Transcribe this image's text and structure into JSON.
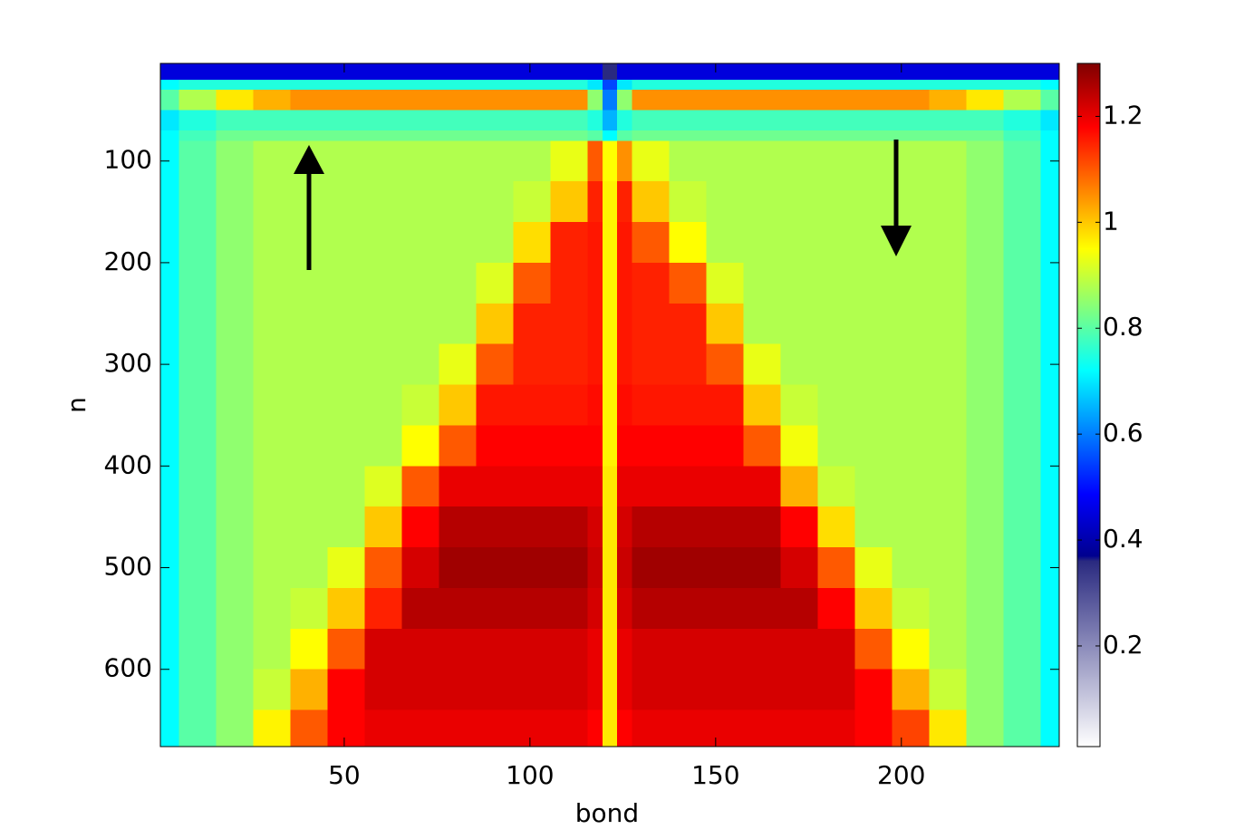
{
  "chart_data": {
    "type": "heatmap",
    "xlabel": "bond",
    "ylabel": "n",
    "xlim": [
      0.5,
      242.5
    ],
    "ylim": [
      4,
      676
    ],
    "y_reversed": true,
    "xticks": [
      50,
      100,
      150,
      200
    ],
    "yticks": [
      100,
      200,
      300,
      400,
      500,
      600
    ],
    "clim": [
      0.01,
      1.3
    ],
    "cticks": [
      0.2,
      0.4,
      0.6,
      0.8,
      1,
      1.2
    ],
    "colormap": [
      [
        0.01,
        "#ffffff"
      ],
      [
        0.36,
        "#2a2a80"
      ],
      [
        0.37,
        "#00008f"
      ],
      [
        0.486,
        "#0000ff"
      ],
      [
        0.72,
        "#00ffff"
      ],
      [
        0.95,
        "#ffff00"
      ],
      [
        1.18,
        "#ff0000"
      ],
      [
        1.3,
        "#800000"
      ]
    ],
    "x_edges": [
      0.5,
      5.5,
      15.5,
      25.5,
      35.5,
      45.5,
      55.5,
      65.5,
      75.5,
      85.5,
      95.5,
      105.5,
      115.5,
      119.5,
      123.5,
      127.5,
      137.5,
      147.5,
      157.5,
      167.5,
      177.5,
      187.5,
      197.5,
      207.5,
      217.5,
      227.5,
      237.5,
      242.5
    ],
    "y_edges": [
      4,
      20,
      30,
      50,
      70,
      80,
      120,
      160,
      200,
      240,
      280,
      320,
      360,
      400,
      440,
      480,
      520,
      560,
      600,
      640,
      676
    ],
    "z": [
      [
        0.45,
        0.45,
        0.45,
        0.45,
        0.45,
        0.45,
        0.45,
        0.45,
        0.45,
        0.45,
        0.45,
        0.45,
        0.45,
        0.36,
        0.45,
        0.45,
        0.45,
        0.45,
        0.45,
        0.45,
        0.45,
        0.45,
        0.45,
        0.45,
        0.45,
        0.45,
        0.45
      ],
      [
        0.72,
        0.75,
        0.75,
        0.75,
        0.75,
        0.75,
        0.75,
        0.75,
        0.75,
        0.75,
        0.75,
        0.75,
        0.7,
        0.55,
        0.7,
        0.75,
        0.75,
        0.75,
        0.75,
        0.75,
        0.75,
        0.75,
        0.75,
        0.75,
        0.75,
        0.75,
        0.72
      ],
      [
        0.8,
        0.88,
        0.97,
        1.02,
        1.05,
        1.05,
        1.05,
        1.05,
        1.05,
        1.05,
        1.05,
        1.05,
        0.85,
        0.6,
        0.85,
        1.05,
        1.05,
        1.05,
        1.05,
        1.05,
        1.05,
        1.05,
        1.05,
        1.02,
        0.97,
        0.88,
        0.8
      ],
      [
        0.7,
        0.75,
        0.78,
        0.78,
        0.78,
        0.78,
        0.78,
        0.78,
        0.78,
        0.78,
        0.78,
        0.78,
        0.75,
        0.65,
        0.75,
        0.78,
        0.78,
        0.78,
        0.78,
        0.78,
        0.78,
        0.78,
        0.78,
        0.78,
        0.78,
        0.75,
        0.7
      ],
      [
        0.72,
        0.78,
        0.82,
        0.82,
        0.82,
        0.82,
        0.82,
        0.82,
        0.82,
        0.82,
        0.82,
        0.82,
        0.8,
        0.72,
        0.8,
        0.82,
        0.82,
        0.82,
        0.82,
        0.82,
        0.82,
        0.82,
        0.82,
        0.82,
        0.82,
        0.78,
        0.72
      ],
      [
        0.72,
        0.8,
        0.85,
        0.88,
        0.88,
        0.88,
        0.88,
        0.88,
        0.88,
        0.88,
        0.88,
        0.93,
        1.1,
        0.95,
        1.05,
        0.93,
        0.88,
        0.88,
        0.88,
        0.88,
        0.88,
        0.88,
        0.88,
        0.88,
        0.85,
        0.8,
        0.72
      ],
      [
        0.72,
        0.8,
        0.85,
        0.88,
        0.88,
        0.88,
        0.88,
        0.88,
        0.88,
        0.88,
        0.9,
        1.0,
        1.15,
        0.96,
        1.15,
        1.0,
        0.9,
        0.88,
        0.88,
        0.88,
        0.88,
        0.88,
        0.88,
        0.88,
        0.85,
        0.8,
        0.72
      ],
      [
        0.72,
        0.8,
        0.85,
        0.88,
        0.88,
        0.88,
        0.88,
        0.88,
        0.88,
        0.88,
        0.98,
        1.15,
        1.16,
        0.96,
        1.16,
        1.1,
        0.95,
        0.88,
        0.88,
        0.88,
        0.88,
        0.88,
        0.88,
        0.88,
        0.85,
        0.8,
        0.72
      ],
      [
        0.72,
        0.8,
        0.85,
        0.88,
        0.88,
        0.88,
        0.88,
        0.88,
        0.88,
        0.92,
        1.1,
        1.15,
        1.16,
        0.96,
        1.16,
        1.15,
        1.1,
        0.92,
        0.88,
        0.88,
        0.88,
        0.88,
        0.88,
        0.88,
        0.85,
        0.8,
        0.72
      ],
      [
        0.72,
        0.8,
        0.85,
        0.88,
        0.88,
        0.88,
        0.88,
        0.88,
        0.88,
        1.0,
        1.15,
        1.15,
        1.16,
        0.96,
        1.16,
        1.15,
        1.15,
        1.0,
        0.88,
        0.88,
        0.88,
        0.88,
        0.88,
        0.88,
        0.85,
        0.8,
        0.72
      ],
      [
        0.72,
        0.8,
        0.85,
        0.88,
        0.88,
        0.88,
        0.88,
        0.88,
        0.93,
        1.1,
        1.15,
        1.15,
        1.16,
        0.96,
        1.16,
        1.15,
        1.15,
        1.1,
        0.93,
        0.88,
        0.88,
        0.88,
        0.88,
        0.88,
        0.85,
        0.8,
        0.72
      ],
      [
        0.72,
        0.8,
        0.85,
        0.88,
        0.88,
        0.88,
        0.88,
        0.9,
        1.0,
        1.16,
        1.16,
        1.16,
        1.17,
        0.96,
        1.17,
        1.16,
        1.16,
        1.16,
        1.0,
        0.9,
        0.88,
        0.88,
        0.88,
        0.88,
        0.85,
        0.8,
        0.72
      ],
      [
        0.72,
        0.8,
        0.85,
        0.88,
        0.88,
        0.88,
        0.88,
        0.95,
        1.1,
        1.18,
        1.18,
        1.18,
        1.18,
        0.96,
        1.18,
        1.18,
        1.18,
        1.18,
        1.1,
        0.94,
        0.88,
        0.88,
        0.88,
        0.88,
        0.85,
        0.8,
        0.72
      ],
      [
        0.72,
        0.8,
        0.85,
        0.88,
        0.88,
        0.88,
        0.92,
        1.1,
        1.2,
        1.2,
        1.2,
        1.2,
        1.2,
        0.97,
        1.2,
        1.2,
        1.2,
        1.2,
        1.2,
        1.02,
        0.9,
        0.88,
        0.88,
        0.88,
        0.85,
        0.8,
        0.72
      ],
      [
        0.72,
        0.8,
        0.85,
        0.88,
        0.88,
        0.88,
        1.0,
        1.18,
        1.25,
        1.25,
        1.25,
        1.25,
        1.22,
        0.97,
        1.22,
        1.25,
        1.25,
        1.25,
        1.25,
        1.18,
        0.98,
        0.88,
        0.88,
        0.88,
        0.85,
        0.8,
        0.72
      ],
      [
        0.72,
        0.8,
        0.85,
        0.88,
        0.88,
        0.93,
        1.1,
        1.22,
        1.27,
        1.27,
        1.27,
        1.27,
        1.23,
        0.97,
        1.23,
        1.27,
        1.27,
        1.27,
        1.27,
        1.22,
        1.1,
        0.93,
        0.88,
        0.88,
        0.85,
        0.8,
        0.72
      ],
      [
        0.72,
        0.8,
        0.85,
        0.88,
        0.9,
        1.0,
        1.15,
        1.25,
        1.25,
        1.25,
        1.25,
        1.25,
        1.22,
        0.97,
        1.22,
        1.25,
        1.25,
        1.25,
        1.25,
        1.25,
        1.18,
        1.0,
        0.9,
        0.88,
        0.85,
        0.8,
        0.72
      ],
      [
        0.72,
        0.8,
        0.85,
        0.88,
        0.95,
        1.1,
        1.22,
        1.22,
        1.22,
        1.22,
        1.22,
        1.22,
        1.2,
        0.97,
        1.2,
        1.22,
        1.22,
        1.22,
        1.22,
        1.22,
        1.22,
        1.1,
        0.95,
        0.88,
        0.85,
        0.8,
        0.72
      ],
      [
        0.72,
        0.8,
        0.85,
        0.9,
        1.02,
        1.18,
        1.22,
        1.22,
        1.22,
        1.22,
        1.22,
        1.22,
        1.2,
        0.97,
        1.2,
        1.22,
        1.22,
        1.22,
        1.22,
        1.22,
        1.22,
        1.18,
        1.02,
        0.9,
        0.85,
        0.8,
        0.72
      ],
      [
        0.72,
        0.8,
        0.85,
        0.96,
        1.1,
        1.18,
        1.2,
        1.2,
        1.2,
        1.2,
        1.2,
        1.2,
        1.18,
        0.97,
        1.18,
        1.2,
        1.2,
        1.2,
        1.2,
        1.2,
        1.2,
        1.18,
        1.12,
        0.97,
        0.85,
        0.8,
        0.72
      ]
    ]
  }
}
